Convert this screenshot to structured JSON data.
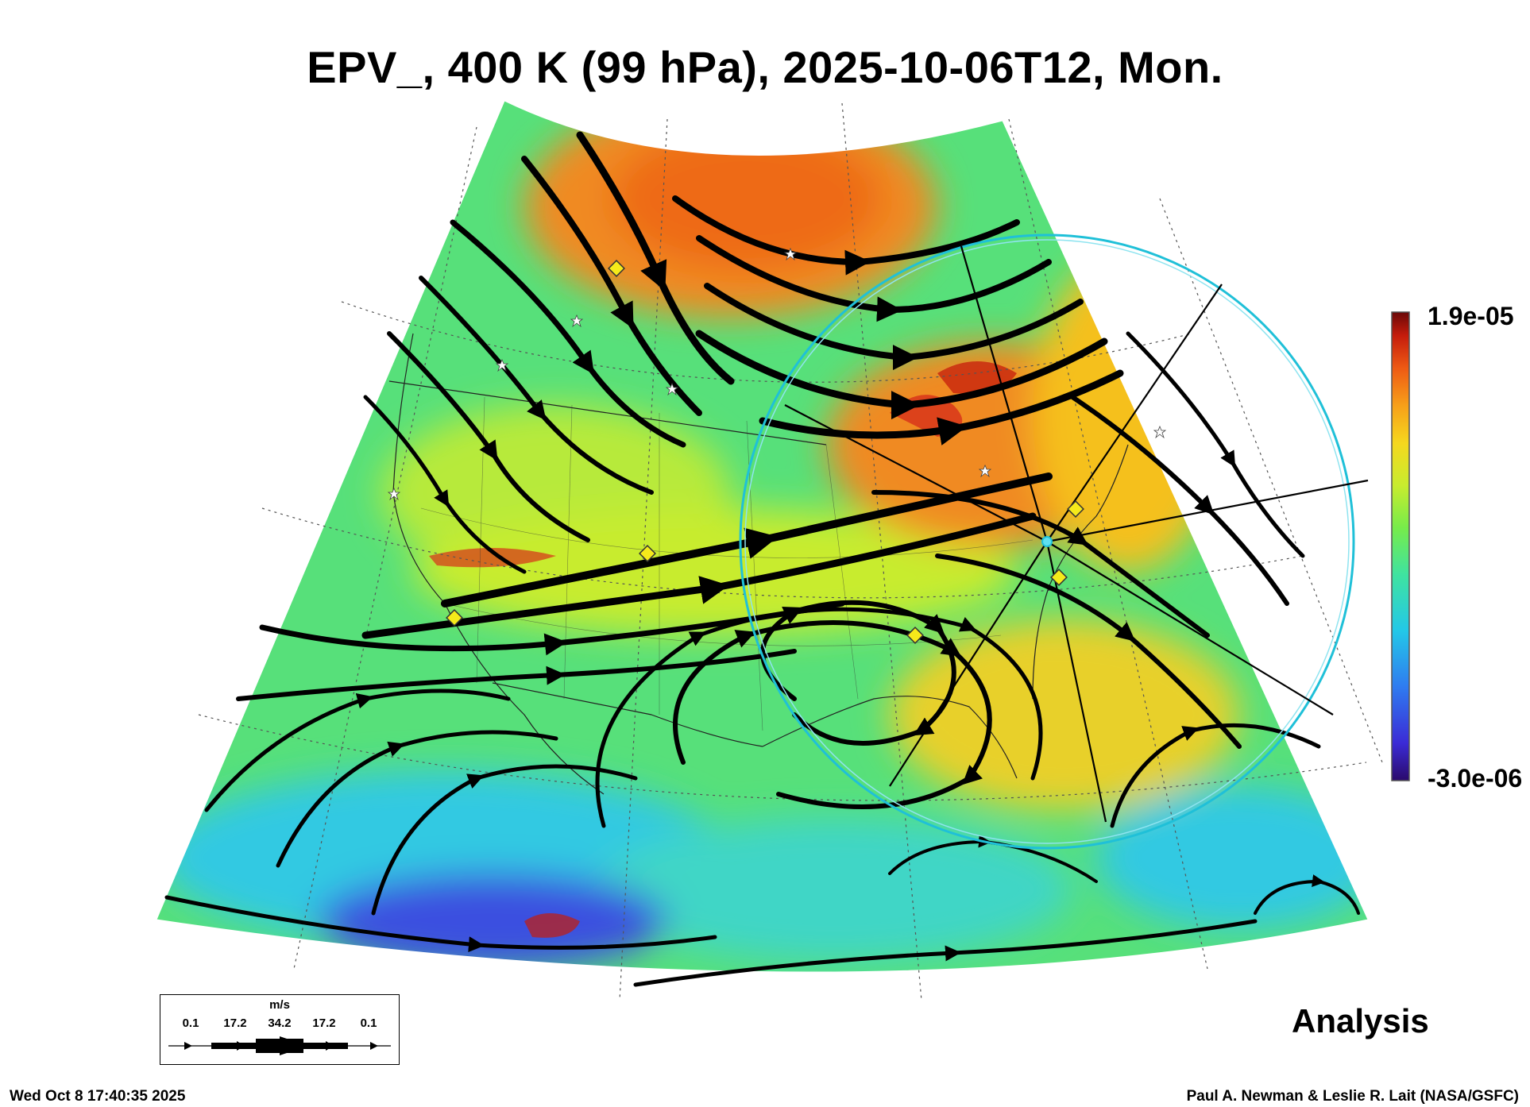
{
  "title": "EPV_, 400 K (99 hPa), 2025-10-06T12, Mon.",
  "colorbar": {
    "max_label": "1.9e-05",
    "min_label": "-3.0e-06",
    "colors": [
      "#2a0a6b",
      "#3b2bd6",
      "#2f7bf0",
      "#23c8e8",
      "#3fe3a0",
      "#77ec4a",
      "#c8ec2e",
      "#f5d81e",
      "#f7a019",
      "#ee5a14",
      "#c51c0c",
      "#6a0808"
    ]
  },
  "field_colors": {
    "high": "#f08a22",
    "mid": "#b7ea3a",
    "base": "#57e07a",
    "low": "#33c9e2",
    "min": "#3b4fe0",
    "peak": "#d7301a"
  },
  "wind_key": {
    "units": "m/s",
    "ticks": [
      "0.1",
      "17.2",
      "34.2",
      "17.2",
      "0.1"
    ]
  },
  "analysis_label": "Analysis",
  "footer": {
    "timestamp": "Wed Oct  8 17:40:35 2025",
    "credit": "Paul A. Newman & Leslie R. Lait (NASA/GSFC)"
  },
  "icons": [
    "station-star-icon",
    "station-diamond-icon"
  ]
}
